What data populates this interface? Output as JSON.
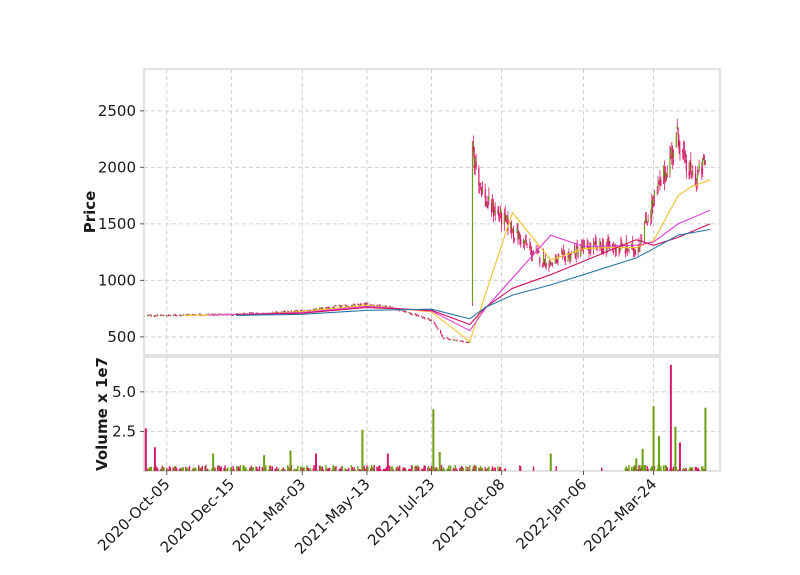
{
  "chart_data": {
    "type": "candlestick",
    "price_panel": {
      "ylabel": "Price",
      "yticks": [
        500,
        1000,
        1500,
        2000,
        2500
      ],
      "ylim": [
        340,
        2870
      ],
      "grid": true
    },
    "volume_panel": {
      "ylabel": "Volume x 1e7",
      "yticks": [
        2.5,
        5.0
      ],
      "ytick_labels": [
        "2.5",
        "5.0"
      ],
      "ylim": [
        0,
        7.2
      ],
      "grid": true
    },
    "x_axis": {
      "type": "date",
      "range": [
        "2020-09-10",
        "2022-06-05"
      ],
      "tick_dates": [
        "2020-10-05",
        "2020-12-15",
        "2021-03-03",
        "2021-05-13",
        "2021-07-23",
        "2021-10-08",
        "2022-01-06",
        "2022-03-24"
      ],
      "tick_labels": [
        "2020-Oct-05",
        "2020-Dec-15",
        "2021-Mar-03",
        "2021-May-13",
        "2021-Jul-23",
        "2021-Oct-08",
        "2022-Jan-06",
        "2022-Mar-24"
      ]
    },
    "colors": {
      "up": "#6b9e10",
      "down": "#d6196a",
      "wick": "#d6196a",
      "ma_fast": "#f2c028",
      "ma_mid": "#e040d8",
      "ma_slow": "#d01060",
      "ma_long": "#2a78a8"
    },
    "price_path": [
      [
        "2020-09-12",
        690
      ],
      [
        "2020-10-05",
        690
      ],
      [
        "2020-11-01",
        698
      ],
      [
        "2020-12-15",
        700
      ],
      [
        "2021-01-20",
        710
      ],
      [
        "2021-03-03",
        730
      ],
      [
        "2021-04-05",
        765
      ],
      [
        "2021-05-13",
        790
      ],
      [
        "2021-06-05",
        770
      ],
      [
        "2021-06-25",
        720
      ],
      [
        "2021-07-23",
        650
      ],
      [
        "2021-08-05",
        490
      ],
      [
        "2021-09-03",
        450
      ],
      [
        "2021-09-04",
        2200
      ],
      [
        "2021-09-20",
        1700
      ],
      [
        "2021-10-20",
        1450
      ],
      [
        "2021-11-10",
        1250
      ],
      [
        "2021-12-01",
        1150
      ],
      [
        "2022-01-06",
        1280
      ],
      [
        "2022-02-01",
        1300
      ],
      [
        "2022-03-05",
        1270
      ],
      [
        "2022-03-24",
        1700
      ],
      [
        "2022-04-10",
        2050
      ],
      [
        "2022-04-20",
        2300
      ],
      [
        "2022-04-28",
        2000
      ],
      [
        "2022-05-10",
        1900
      ],
      [
        "2022-05-20",
        2050
      ]
    ],
    "moving_averages": [
      {
        "key": "ma_fast",
        "points": [
          [
            "2020-10-25",
            690
          ],
          [
            "2021-01-20",
            705
          ],
          [
            "2021-03-03",
            725
          ],
          [
            "2021-05-13",
            780
          ],
          [
            "2021-07-23",
            720
          ],
          [
            "2021-09-03",
            460
          ],
          [
            "2021-10-20",
            1600
          ],
          [
            "2021-12-01",
            1180
          ],
          [
            "2022-01-06",
            1280
          ],
          [
            "2022-02-01",
            1290
          ],
          [
            "2022-03-05",
            1290
          ],
          [
            "2022-03-24",
            1350
          ],
          [
            "2022-04-20",
            1750
          ],
          [
            "2022-05-05",
            1830
          ],
          [
            "2022-05-25",
            1890
          ]
        ]
      },
      {
        "key": "ma_mid",
        "points": [
          [
            "2020-11-20",
            692
          ],
          [
            "2021-03-03",
            715
          ],
          [
            "2021-05-13",
            770
          ],
          [
            "2021-07-23",
            730
          ],
          [
            "2021-09-03",
            555
          ],
          [
            "2021-09-20",
            750
          ],
          [
            "2021-12-01",
            1400
          ],
          [
            "2022-01-06",
            1300
          ],
          [
            "2022-03-05",
            1310
          ],
          [
            "2022-03-24",
            1340
          ],
          [
            "2022-04-20",
            1500
          ],
          [
            "2022-05-25",
            1620
          ]
        ]
      },
      {
        "key": "ma_slow",
        "points": [
          [
            "2020-12-20",
            695
          ],
          [
            "2021-03-03",
            710
          ],
          [
            "2021-05-13",
            760
          ],
          [
            "2021-07-23",
            735
          ],
          [
            "2021-09-03",
            610
          ],
          [
            "2021-09-20",
            760
          ],
          [
            "2021-10-20",
            930
          ],
          [
            "2021-12-01",
            1050
          ],
          [
            "2022-01-06",
            1170
          ],
          [
            "2022-03-05",
            1360
          ],
          [
            "2022-03-24",
            1310
          ],
          [
            "2022-04-20",
            1380
          ],
          [
            "2022-05-25",
            1500
          ]
        ]
      },
      {
        "key": "ma_long",
        "points": [
          [
            "2020-12-20",
            690
          ],
          [
            "2021-03-03",
            700
          ],
          [
            "2021-05-13",
            735
          ],
          [
            "2021-07-23",
            745
          ],
          [
            "2021-09-03",
            660
          ],
          [
            "2021-09-20",
            760
          ],
          [
            "2021-10-20",
            870
          ],
          [
            "2021-12-01",
            960
          ],
          [
            "2022-01-06",
            1050
          ],
          [
            "2022-03-05",
            1200
          ],
          [
            "2022-03-24",
            1280
          ],
          [
            "2022-04-20",
            1400
          ],
          [
            "2022-05-25",
            1450
          ]
        ]
      }
    ],
    "volume_spikes": [
      [
        "2020-09-12",
        2.7,
        "down"
      ],
      [
        "2020-09-22",
        1.5,
        "down"
      ],
      [
        "2020-11-25",
        1.1,
        "up"
      ],
      [
        "2021-01-20",
        1.0,
        "up"
      ],
      [
        "2021-02-18",
        1.3,
        "up"
      ],
      [
        "2021-03-18",
        1.1,
        "down"
      ],
      [
        "2021-05-08",
        2.6,
        "up"
      ],
      [
        "2021-06-05",
        1.1,
        "down"
      ],
      [
        "2021-07-25",
        3.9,
        "up"
      ],
      [
        "2021-08-01",
        1.2,
        "up"
      ],
      [
        "2021-12-01",
        1.1,
        "up"
      ],
      [
        "2022-03-05",
        0.8,
        "up"
      ],
      [
        "2022-03-12",
        1.4,
        "up"
      ],
      [
        "2022-03-24",
        4.1,
        "up"
      ],
      [
        "2022-03-30",
        2.2,
        "up"
      ],
      [
        "2022-04-12",
        6.7,
        "down"
      ],
      [
        "2022-04-17",
        2.8,
        "up"
      ],
      [
        "2022-04-22",
        1.8,
        "down"
      ],
      [
        "2022-05-20",
        4.0,
        "up"
      ]
    ],
    "volume_base": 0.35
  }
}
